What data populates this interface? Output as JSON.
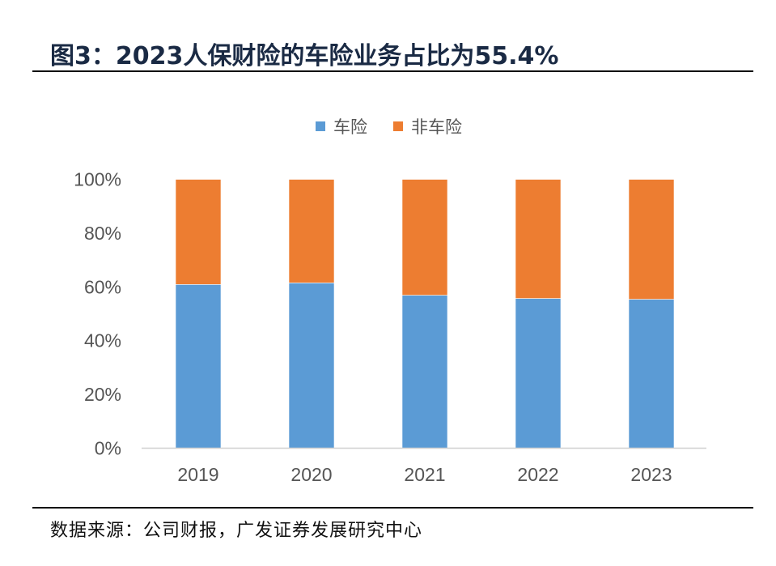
{
  "title": "图3：2023人保财险的车险业务占比为55.4%",
  "source": "数据来源：公司财报，广发证券发展研究中心",
  "chart_data": {
    "type": "bar",
    "stacked": true,
    "percent_stacked": true,
    "categories": [
      "2019",
      "2020",
      "2021",
      "2022",
      "2023"
    ],
    "series": [
      {
        "name": "车险",
        "color": "#5B9BD5",
        "values": [
          60.9,
          61.5,
          56.9,
          55.7,
          55.4
        ]
      },
      {
        "name": "非车险",
        "color": "#ED7D31",
        "values": [
          39.1,
          38.5,
          43.1,
          44.3,
          44.6
        ]
      }
    ],
    "yticks": [
      "0%",
      "20%",
      "40%",
      "60%",
      "80%",
      "100%"
    ],
    "ylim": [
      0,
      100
    ],
    "legend": "top",
    "grid": false
  }
}
